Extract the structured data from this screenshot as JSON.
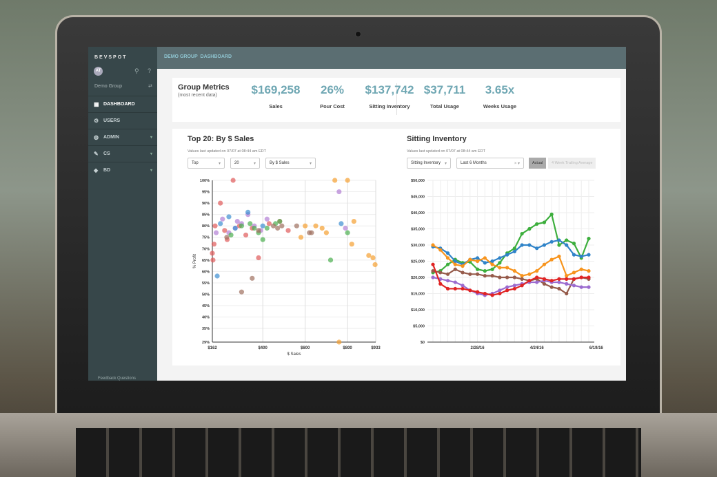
{
  "sidebar": {
    "brand": "BEVSPOT",
    "avatar": "AT",
    "group": "Demo Group",
    "items": [
      {
        "label": "DASHBOARD",
        "icon": "▦"
      },
      {
        "label": "USERS",
        "icon": "⚙"
      },
      {
        "label": "ADMIN",
        "icon": "◍"
      },
      {
        "label": "CS",
        "icon": "✎"
      },
      {
        "label": "BD",
        "icon": "◆"
      }
    ],
    "footer": "Feedback  Questions"
  },
  "breadcrumb": {
    "group": "DEMO GROUP",
    "page": "DASHBOARD"
  },
  "metrics": {
    "title": "Group Metrics",
    "subtitle": "(most recent data)",
    "items": [
      {
        "value": "$169,258",
        "label": "Sales"
      },
      {
        "value": "26%",
        "label": "Pour Cost"
      },
      {
        "value": "$137,742",
        "label": "Sitting Inventory"
      },
      {
        "value": "$37,711",
        "label": "Total Usage"
      },
      {
        "value": "3.65x",
        "label": "Weeks Usage"
      }
    ]
  },
  "top20": {
    "title": "Top 20: By $ Sales",
    "updated": "Values last updated on 07/07 at 08:44 am EDT",
    "filters": [
      "Top",
      "20",
      "By $ Sales"
    ]
  },
  "inventory": {
    "title": "Sitting Inventory",
    "updated": "Values last updated on 07/07 at 08:44 am EDT",
    "filters": [
      "Sitting Inventory",
      "Last 6 Months"
    ],
    "toggle": [
      "Actual",
      "4 Week Trailing Average"
    ],
    "toggle_active": "Actual"
  },
  "chart_data": [
    {
      "type": "scatter",
      "xlabel": "$ Sales",
      "ylabel": "% Profit",
      "xlim": [
        162,
        933
      ],
      "ylim": [
        29,
        100
      ],
      "xticks": [
        "$162",
        "$400",
        "$600",
        "$800",
        "$933"
      ],
      "xtick_values": [
        162,
        400,
        600,
        800,
        933
      ],
      "yticks": [
        "100%",
        "95%",
        "90%",
        "85%",
        "80%",
        "75%",
        "70%",
        "65%",
        "60%",
        "55%",
        "50%",
        "45%",
        "40%",
        "35%",
        "29%"
      ],
      "ytick_values": [
        100,
        95,
        90,
        85,
        80,
        75,
        70,
        65,
        60,
        55,
        50,
        45,
        40,
        35,
        29
      ],
      "series": [
        {
          "name": "red",
          "color": "#e05a5a",
          "points": [
            [
              162,
              68
            ],
            [
              165,
              65
            ],
            [
              170,
              72
            ],
            [
              175,
              80
            ],
            [
              200,
              90
            ],
            [
              220,
              78
            ],
            [
              232,
              74
            ],
            [
              260,
              100
            ],
            [
              290,
              80
            ],
            [
              320,
              76
            ],
            [
              350,
              79
            ],
            [
              380,
              66
            ],
            [
              430,
              81
            ],
            [
              480,
              82
            ],
            [
              520,
              78
            ]
          ]
        },
        {
          "name": "purple",
          "color": "#b27fd4",
          "points": [
            [
              180,
              77
            ],
            [
              210,
              83
            ],
            [
              240,
              77
            ],
            [
              270,
              79
            ],
            [
              280,
              82
            ],
            [
              300,
              81
            ],
            [
              330,
              85
            ],
            [
              360,
              80
            ],
            [
              390,
              78
            ],
            [
              420,
              83
            ],
            [
              760,
              95
            ],
            [
              790,
              79
            ]
          ]
        },
        {
          "name": "blue",
          "color": "#3d8fd1",
          "points": [
            [
              185,
              58
            ],
            [
              200,
              81
            ],
            [
              240,
              84
            ],
            [
              270,
              79
            ],
            [
              330,
              86
            ],
            [
              400,
              80
            ],
            [
              770,
              81
            ]
          ]
        },
        {
          "name": "green",
          "color": "#4caf50",
          "points": [
            [
              250,
              76
            ],
            [
              300,
              80
            ],
            [
              340,
              81
            ],
            [
              360,
              79
            ],
            [
              380,
              77
            ],
            [
              400,
              74
            ],
            [
              420,
              79
            ],
            [
              460,
              81
            ],
            [
              480,
              82
            ],
            [
              720,
              65
            ],
            [
              800,
              77
            ]
          ]
        },
        {
          "name": "brown",
          "color": "#a07060",
          "points": [
            [
              230,
              75
            ],
            [
              300,
              51
            ],
            [
              350,
              57
            ],
            [
              380,
              78
            ],
            [
              450,
              80
            ],
            [
              470,
              79
            ],
            [
              490,
              80
            ],
            [
              560,
              80
            ],
            [
              620,
              77
            ],
            [
              630,
              77
            ]
          ]
        },
        {
          "name": "orange",
          "color": "#f5a030",
          "points": [
            [
              580,
              75
            ],
            [
              600,
              80
            ],
            [
              650,
              80
            ],
            [
              680,
              79
            ],
            [
              700,
              77
            ],
            [
              740,
              100
            ],
            [
              800,
              100
            ],
            [
              820,
              72
            ],
            [
              830,
              82
            ],
            [
              900,
              67
            ],
            [
              920,
              66
            ],
            [
              930,
              63
            ],
            [
              760,
              29
            ]
          ]
        }
      ]
    },
    {
      "type": "line",
      "ylim": [
        0,
        50000
      ],
      "yticks": [
        "$50,000",
        "$45,000",
        "$40,000",
        "$35,000",
        "$30,000",
        "$25,000",
        "$20,000",
        "$15,000",
        "$10,000",
        "$5,000",
        "$0"
      ],
      "ytick_values": [
        50000,
        45000,
        40000,
        35000,
        30000,
        25000,
        20000,
        15000,
        10000,
        5000,
        0
      ],
      "xticks": [
        "2/28/16",
        "4/24/16",
        "6/19/16"
      ],
      "xtick_index": [
        6,
        14,
        22
      ],
      "series": [
        {
          "name": "green",
          "color": "#3cae3c",
          "values": [
            21500,
            22000,
            24000,
            25500,
            24500,
            24800,
            22500,
            22000,
            22500,
            24500,
            27500,
            29000,
            33500,
            35000,
            36500,
            37000,
            39500,
            30000,
            31500,
            30500,
            26000,
            32000
          ]
        },
        {
          "name": "blue",
          "color": "#2f83c8",
          "values": [
            29500,
            29000,
            27500,
            25000,
            24000,
            25500,
            26000,
            24500,
            25000,
            26000,
            27000,
            28000,
            30000,
            30000,
            29000,
            30000,
            31000,
            31500,
            30000,
            27000,
            26500,
            27000
          ]
        },
        {
          "name": "orange",
          "color": "#f7941d",
          "values": [
            30000,
            28500,
            26000,
            24000,
            23500,
            25500,
            25000,
            26000,
            24000,
            23000,
            23000,
            22000,
            20500,
            21000,
            22000,
            24000,
            25500,
            26500,
            20500,
            21500,
            22500,
            22000
          ]
        },
        {
          "name": "brown",
          "color": "#955a4a",
          "values": [
            22000,
            21500,
            21000,
            22500,
            21500,
            21000,
            21000,
            20500,
            20500,
            20000,
            20000,
            20000,
            19500,
            19000,
            19500,
            18000,
            17000,
            16500,
            15000,
            19500,
            20000,
            19500
          ]
        },
        {
          "name": "purple",
          "color": "#9b6bcf",
          "values": [
            20000,
            19500,
            19000,
            18500,
            17500,
            16000,
            15000,
            14500,
            15000,
            16000,
            17000,
            17500,
            18000,
            18500,
            18500,
            19000,
            18500,
            18500,
            18000,
            17500,
            17000,
            17000
          ]
        },
        {
          "name": "red",
          "color": "#e02424",
          "values": [
            24000,
            18000,
            16500,
            16500,
            16500,
            16000,
            15500,
            15000,
            14500,
            15000,
            16000,
            16500,
            17500,
            19000,
            20000,
            19500,
            19000,
            19500,
            19500,
            19500,
            20000,
            20000
          ]
        }
      ]
    }
  ]
}
